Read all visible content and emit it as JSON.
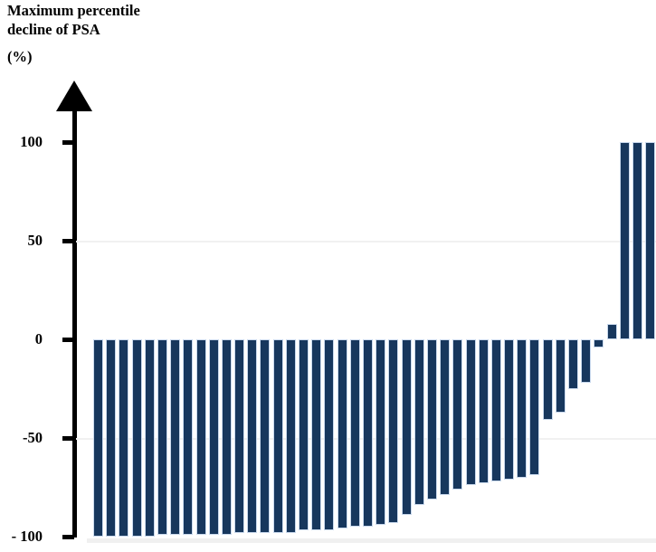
{
  "header": {
    "title_line1": "Maximum percentile",
    "title_line2": "decline of PSA",
    "unit_label": "(%)"
  },
  "chart_data": {
    "type": "bar",
    "subtype": "waterfall",
    "title": "Maximum percentile decline of PSA (%)",
    "xlabel": "",
    "ylabel": "Maximum percentile decline of PSA (%)",
    "ylim": [
      -100,
      100
    ],
    "grid": "off",
    "legend": "none",
    "bar_color": "#17375d",
    "bar_border_color": "#c9d9ed",
    "axis_color": "#000000",
    "yticks": [
      {
        "label": "100",
        "value": 100
      },
      {
        "label": "50",
        "value": 50
      },
      {
        "label": "0",
        "value": 0
      },
      {
        "label": "-50",
        "value": -50
      },
      {
        "label": "- 100",
        "value": -100
      }
    ],
    "categories": [],
    "values": [
      -100,
      -100,
      -100,
      -100,
      -100,
      -99,
      -99,
      -99,
      -99,
      -99,
      -99,
      -98,
      -98,
      -98,
      -98,
      -98,
      -97,
      -97,
      -97,
      -96,
      -95,
      -95,
      -94,
      -93,
      -89,
      -84,
      -81,
      -79,
      -76,
      -74,
      -73,
      -72,
      -71,
      -70,
      -69,
      -41,
      -37,
      -25,
      -22,
      -4,
      8,
      100,
      100,
      100
    ],
    "n_bars": 44
  }
}
